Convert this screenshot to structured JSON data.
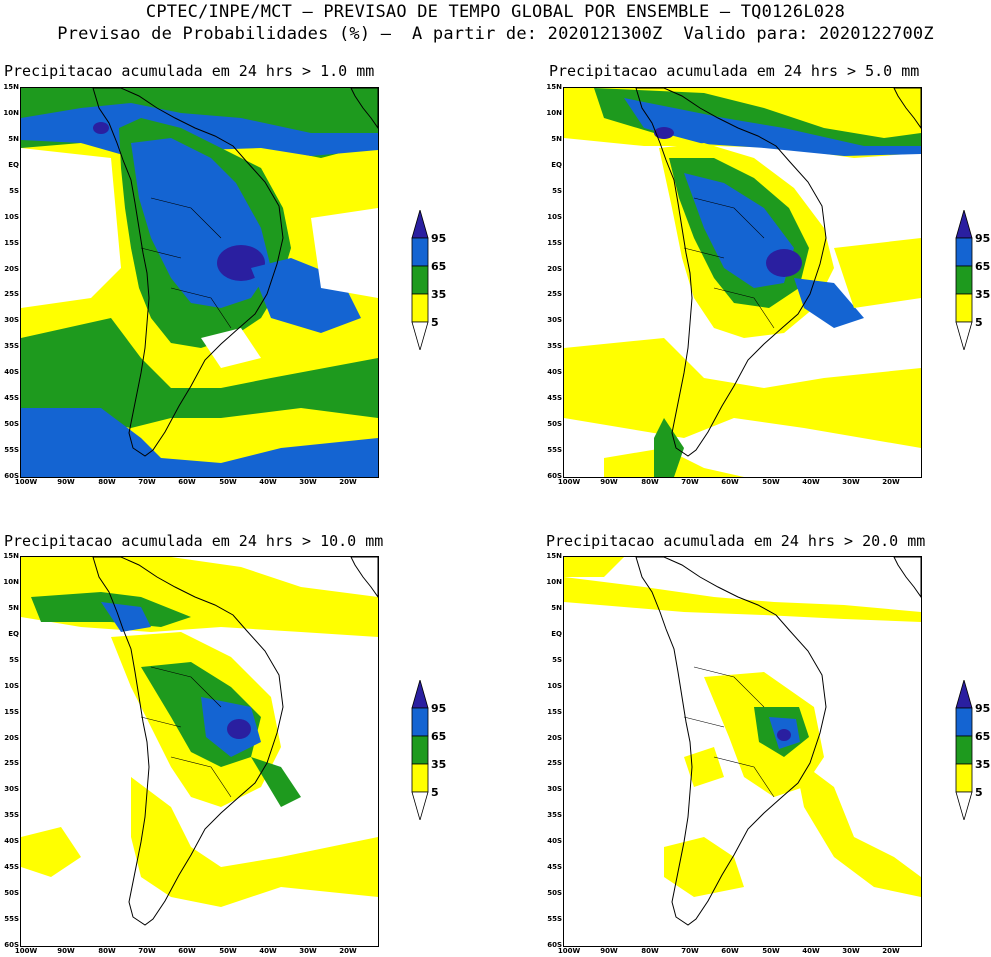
{
  "header": {
    "line1": "CPTEC/INPE/MCT – PREVISAO DE TEMPO GLOBAL POR ENSEMBLE – TQ0126L028",
    "line2": "Previsao de Probabilidades (%) –  A partir de: 2020121300Z  Valido para: 2020122700Z"
  },
  "panels": [
    {
      "title": "Precipitacao acumulada em 24 hrs > 1.0 mm"
    },
    {
      "title": "Precipitacao acumulada em 24 hrs > 5.0 mm"
    },
    {
      "title": "Precipitacao acumulada em 24 hrs > 10.0 mm"
    },
    {
      "title": "Precipitacao acumulada em 24 hrs > 20.0 mm"
    }
  ],
  "axes": {
    "y_labels": [
      "15N",
      "10N",
      "5N",
      "EQ",
      "5S",
      "10S",
      "15S",
      "20S",
      "25S",
      "30S",
      "35S",
      "40S",
      "45S",
      "50S",
      "55S",
      "60S"
    ],
    "x_labels": [
      "100W",
      "90W",
      "80W",
      "70W",
      "60W",
      "50W",
      "40W",
      "30W",
      "20W"
    ]
  },
  "legend": {
    "labels": [
      "95",
      "65",
      "35",
      "5"
    ],
    "colors": {
      "yellow": "#ffff00",
      "green": "#1e9a1e",
      "blue": "#1464d2",
      "navy": "#2a1fa0"
    }
  }
}
